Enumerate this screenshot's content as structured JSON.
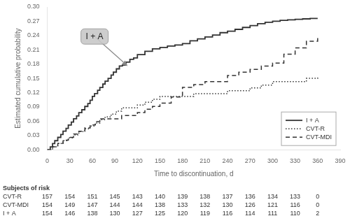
{
  "chart_data": {
    "type": "step",
    "xlabel": "Time to discontinuation, d",
    "ylabel": "Estimated cumulative probability",
    "xlim": [
      0,
      390
    ],
    "ylim": [
      0,
      0.3
    ],
    "xticks": [
      0,
      30,
      60,
      90,
      120,
      150,
      180,
      210,
      240,
      270,
      300,
      330,
      360,
      390
    ],
    "yticks": [
      {
        "value": 0.0,
        "label": "0.00"
      },
      0.03,
      0.06,
      0.09,
      0.12,
      0.15,
      0.18,
      0.21,
      0.24,
      0.27,
      {
        "value": 0.3,
        "label": "0.30"
      }
    ],
    "grid": false,
    "legend": "lower right",
    "series": [
      {
        "name": "I + A",
        "color": "#333333",
        "line_style": "solid",
        "x": [
          0,
          4,
          7,
          10,
          14,
          18,
          21,
          25,
          28,
          32,
          35,
          39,
          42,
          46,
          50,
          54,
          57,
          60,
          63,
          67,
          70,
          74,
          77,
          81,
          85,
          88,
          92,
          96,
          100,
          105,
          110,
          115,
          120,
          130,
          140,
          150,
          160,
          170,
          180,
          190,
          200,
          210,
          220,
          230,
          240,
          250,
          260,
          270,
          280,
          290,
          300,
          310,
          320,
          330,
          340,
          350,
          360
        ],
        "values": [
          0,
          0.006,
          0.013,
          0.019,
          0.026,
          0.032,
          0.039,
          0.045,
          0.052,
          0.058,
          0.065,
          0.071,
          0.078,
          0.084,
          0.091,
          0.097,
          0.104,
          0.112,
          0.118,
          0.125,
          0.131,
          0.138,
          0.144,
          0.15,
          0.157,
          0.163,
          0.17,
          0.176,
          0.178,
          0.184,
          0.19,
          0.193,
          0.2,
          0.207,
          0.212,
          0.215,
          0.218,
          0.22,
          0.223,
          0.229,
          0.233,
          0.237,
          0.241,
          0.246,
          0.249,
          0.253,
          0.257,
          0.261,
          0.265,
          0.268,
          0.27,
          0.272,
          0.273,
          0.274,
          0.275,
          0.276,
          0.276
        ]
      },
      {
        "name": "CVT-R",
        "color": "#333333",
        "line_style": "dotted",
        "x": [
          0,
          7,
          14,
          21,
          28,
          35,
          42,
          50,
          57,
          64,
          70,
          77,
          85,
          92,
          99,
          106,
          113,
          120,
          130,
          140,
          150,
          160,
          170,
          180,
          195,
          210,
          225,
          240,
          255,
          270,
          285,
          300,
          315,
          330,
          345,
          360
        ],
        "values": [
          0,
          0.006,
          0.013,
          0.019,
          0.025,
          0.031,
          0.038,
          0.044,
          0.05,
          0.056,
          0.063,
          0.069,
          0.075,
          0.081,
          0.088,
          0.088,
          0.088,
          0.094,
          0.1,
          0.106,
          0.112,
          0.112,
          0.112,
          0.112,
          0.118,
          0.118,
          0.118,
          0.124,
          0.124,
          0.13,
          0.136,
          0.143,
          0.143,
          0.143,
          0.15,
          0.152
        ]
      },
      {
        "name": "CVT-MDI",
        "color": "#333333",
        "line_style": "dashed",
        "x": [
          0,
          7,
          14,
          21,
          28,
          35,
          42,
          50,
          57,
          64,
          70,
          77,
          85,
          92,
          99,
          106,
          113,
          120,
          130,
          140,
          150,
          165,
          180,
          195,
          210,
          225,
          240,
          255,
          270,
          285,
          300,
          315,
          330,
          345,
          360
        ],
        "values": [
          0,
          0.006,
          0.013,
          0.02,
          0.026,
          0.033,
          0.039,
          0.046,
          0.052,
          0.059,
          0.065,
          0.065,
          0.065,
          0.065,
          0.072,
          0.072,
          0.072,
          0.078,
          0.085,
          0.091,
          0.098,
          0.111,
          0.131,
          0.137,
          0.143,
          0.143,
          0.156,
          0.163,
          0.169,
          0.176,
          0.182,
          0.201,
          0.214,
          0.228,
          0.236
        ]
      }
    ],
    "annotations": [
      {
        "text": "I + A",
        "x": 63,
        "y": 0.238,
        "target_x": 107,
        "target_y": 0.176
      }
    ],
    "table": {
      "title": "Subjects of risk",
      "times": [
        0,
        30,
        60,
        90,
        120,
        150,
        180,
        210,
        240,
        270,
        300,
        330,
        360
      ],
      "rows": [
        {
          "name": "CVT-R",
          "values": [
            157,
            154,
            151,
            145,
            143,
            140,
            139,
            138,
            137,
            136,
            134,
            133,
            0
          ]
        },
        {
          "name": "CVT-MDI",
          "values": [
            154,
            149,
            147,
            144,
            144,
            138,
            133,
            132,
            130,
            126,
            121,
            116,
            0
          ]
        },
        {
          "name": "I + A",
          "values": [
            154,
            146,
            138,
            130,
            127,
            125,
            120,
            119,
            116,
            114,
            111,
            110,
            2
          ]
        }
      ]
    }
  }
}
